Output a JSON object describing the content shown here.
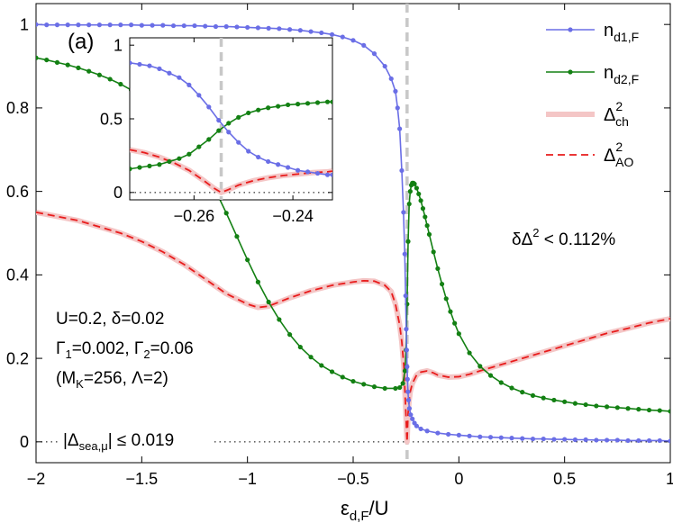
{
  "chart_data": {
    "type": "line",
    "panel_label": "(a)",
    "xlabel_main": "ε",
    "xlabel_sub": "d,F",
    "xlabel_tail": "/U",
    "xlim": [
      -2,
      1
    ],
    "ylim": [
      -0.05,
      1.05
    ],
    "xticks": [
      -2,
      -1.5,
      -1,
      -0.5,
      0,
      0.5,
      1
    ],
    "xtick_labels": [
      "−2",
      "−1.5",
      "−1",
      "−0.5",
      "0",
      "0.5",
      "1"
    ],
    "yticks": [
      0,
      0.2,
      0.4,
      0.6,
      0.8,
      1
    ],
    "ytick_labels": [
      "0",
      "0.2",
      "0.4",
      "0.6",
      "0.8",
      "1"
    ],
    "grid": false,
    "legend_position": "top-right",
    "vline_x": -0.245,
    "colors": {
      "n_d1": "#6a6ee6",
      "n_d2": "#138013",
      "ch": "#f4c6c6",
      "ao": "#e81c1c",
      "vline": "#c8c8c8"
    },
    "legend": [
      {
        "key": "n_d1",
        "main": "n",
        "sub": "d1,F",
        "sup": ""
      },
      {
        "key": "n_d2",
        "main": "n",
        "sub": "d2,F",
        "sup": ""
      },
      {
        "key": "ch",
        "main": "Δ",
        "sub": "ch",
        "sup": "2"
      },
      {
        "key": "ao",
        "main": "Δ",
        "sub": "AO",
        "sup": "2"
      }
    ],
    "series": {
      "n_d1": {
        "x": [
          -2,
          -1.95,
          -1.9,
          -1.85,
          -1.8,
          -1.75,
          -1.7,
          -1.65,
          -1.6,
          -1.55,
          -1.5,
          -1.45,
          -1.4,
          -1.35,
          -1.3,
          -1.25,
          -1.2,
          -1.15,
          -1.1,
          -1.05,
          -1.0,
          -0.95,
          -0.9,
          -0.85,
          -0.8,
          -0.75,
          -0.7,
          -0.65,
          -0.6,
          -0.55,
          -0.5,
          -0.45,
          -0.4,
          -0.35,
          -0.32,
          -0.3,
          -0.29,
          -0.28,
          -0.27,
          -0.262,
          -0.256,
          -0.252,
          -0.249,
          -0.247,
          -0.245,
          -0.243,
          -0.241,
          -0.238,
          -0.234,
          -0.228,
          -0.22,
          -0.21,
          -0.2,
          -0.18,
          -0.15,
          -0.1,
          -0.05,
          0,
          0.05,
          0.1,
          0.15,
          0.2,
          0.25,
          0.3,
          0.35,
          0.4,
          0.45,
          0.5,
          0.55,
          0.6,
          0.65,
          0.7,
          0.75,
          0.8,
          0.85,
          0.9,
          0.95,
          1
        ],
        "y": [
          1.0,
          0.999,
          0.999,
          0.999,
          0.999,
          0.999,
          0.999,
          0.999,
          0.999,
          0.999,
          0.998,
          0.998,
          0.998,
          0.997,
          0.997,
          0.997,
          0.996,
          0.995,
          0.995,
          0.994,
          0.993,
          0.992,
          0.991,
          0.99,
          0.988,
          0.986,
          0.983,
          0.98,
          0.976,
          0.97,
          0.962,
          0.95,
          0.93,
          0.9,
          0.87,
          0.84,
          0.8,
          0.75,
          0.65,
          0.55,
          0.45,
          0.35,
          0.27,
          0.22,
          0.18,
          0.15,
          0.12,
          0.1,
          0.08,
          0.065,
          0.055,
          0.045,
          0.038,
          0.031,
          0.026,
          0.021,
          0.018,
          0.016,
          0.014,
          0.012,
          0.011,
          0.01,
          0.009,
          0.008,
          0.007,
          0.007,
          0.006,
          0.006,
          0.005,
          0.005,
          0.004,
          0.004,
          0.004,
          0.003,
          0.003,
          0.003,
          0.003,
          0.002
        ]
      },
      "n_d2": {
        "x": [
          -2,
          -1.95,
          -1.9,
          -1.85,
          -1.8,
          -1.75,
          -1.7,
          -1.65,
          -1.6,
          -1.55,
          -1.5,
          -1.45,
          -1.4,
          -1.35,
          -1.3,
          -1.25,
          -1.2,
          -1.15,
          -1.1,
          -1.05,
          -1.0,
          -0.95,
          -0.9,
          -0.85,
          -0.8,
          -0.75,
          -0.7,
          -0.65,
          -0.6,
          -0.55,
          -0.5,
          -0.45,
          -0.4,
          -0.35,
          -0.3,
          -0.28,
          -0.265,
          -0.255,
          -0.25,
          -0.245,
          -0.24,
          -0.235,
          -0.23,
          -0.225,
          -0.22,
          -0.215,
          -0.21,
          -0.2,
          -0.19,
          -0.18,
          -0.17,
          -0.16,
          -0.15,
          -0.14,
          -0.12,
          -0.1,
          -0.08,
          -0.06,
          -0.04,
          -0.02,
          0,
          0.05,
          0.1,
          0.15,
          0.2,
          0.25,
          0.3,
          0.35,
          0.4,
          0.45,
          0.5,
          0.55,
          0.6,
          0.65,
          0.7,
          0.75,
          0.8,
          0.85,
          0.9,
          0.95,
          1
        ],
        "y": [
          0.92,
          0.915,
          0.909,
          0.903,
          0.896,
          0.888,
          0.879,
          0.869,
          0.857,
          0.843,
          0.827,
          0.808,
          0.786,
          0.76,
          0.729,
          0.692,
          0.649,
          0.601,
          0.548,
          0.492,
          0.436,
          0.383,
          0.335,
          0.293,
          0.257,
          0.227,
          0.203,
          0.183,
          0.168,
          0.155,
          0.145,
          0.138,
          0.132,
          0.128,
          0.128,
          0.13,
          0.14,
          0.17,
          0.22,
          0.33,
          0.48,
          0.57,
          0.6,
          0.615,
          0.62,
          0.62,
          0.618,
          0.608,
          0.594,
          0.578,
          0.559,
          0.539,
          0.518,
          0.497,
          0.455,
          0.415,
          0.378,
          0.343,
          0.312,
          0.284,
          0.259,
          0.213,
          0.181,
          0.159,
          0.142,
          0.129,
          0.119,
          0.111,
          0.105,
          0.1,
          0.096,
          0.092,
          0.089,
          0.086,
          0.084,
          0.082,
          0.08,
          0.078,
          0.076,
          0.075,
          0.073
        ]
      },
      "ch": {
        "x": [
          -2,
          -1.9,
          -1.8,
          -1.7,
          -1.6,
          -1.5,
          -1.4,
          -1.3,
          -1.2,
          -1.1,
          -1.0,
          -0.95,
          -0.9,
          -0.85,
          -0.8,
          -0.7,
          -0.6,
          -0.5,
          -0.45,
          -0.4,
          -0.35,
          -0.32,
          -0.3,
          -0.28,
          -0.27,
          -0.26,
          -0.255,
          -0.25,
          -0.247,
          -0.245,
          -0.243,
          -0.24,
          -0.235,
          -0.23,
          -0.22,
          -0.2,
          -0.18,
          -0.15,
          -0.12,
          -0.1,
          -0.05,
          0,
          0.05,
          0.1,
          0.2,
          0.3,
          0.4,
          0.5,
          0.6,
          0.7,
          0.8,
          0.9,
          1
        ],
        "y": [
          0.55,
          0.54,
          0.53,
          0.515,
          0.5,
          0.48,
          0.455,
          0.425,
          0.39,
          0.355,
          0.33,
          0.322,
          0.325,
          0.335,
          0.345,
          0.362,
          0.375,
          0.383,
          0.386,
          0.385,
          0.375,
          0.36,
          0.33,
          0.28,
          0.24,
          0.18,
          0.12,
          0.06,
          0.02,
          0.0,
          0.03,
          0.07,
          0.1,
          0.12,
          0.14,
          0.16,
          0.167,
          0.17,
          0.165,
          0.16,
          0.155,
          0.156,
          0.162,
          0.17,
          0.185,
          0.2,
          0.215,
          0.23,
          0.245,
          0.26,
          0.272,
          0.285,
          0.295
        ]
      }
    },
    "horizontal_zero_line": true,
    "annotations": [
      {
        "id": "params1",
        "text": "U=0.2, δ=0.02"
      },
      {
        "id": "params2_a",
        "text": "Γ"
      },
      {
        "id": "params2_a_sub",
        "text": "1"
      },
      {
        "id": "params2_b",
        "text": "=0.002, Γ"
      },
      {
        "id": "params2_b_sub",
        "text": "2"
      },
      {
        "id": "params2_c",
        "text": "=0.06"
      },
      {
        "id": "params3_a",
        "text": "(M"
      },
      {
        "id": "params3_a_sub",
        "text": "K"
      },
      {
        "id": "params3_b",
        "text": "=256, Λ=2)"
      },
      {
        "id": "sea_a",
        "text": "|Δ"
      },
      {
        "id": "sea_a_sub",
        "text": "sea,μ"
      },
      {
        "id": "sea_b",
        "text": "| ≤ 0.019"
      },
      {
        "id": "delta_a",
        "text": "δΔ"
      },
      {
        "id": "delta_a_sup",
        "text": "2"
      },
      {
        "id": "delta_b",
        "text": " < 0.112%"
      }
    ],
    "inset": {
      "xlim": [
        -0.273,
        -0.232
      ],
      "ylim": [
        -0.05,
        1.05
      ],
      "xticks": [
        -0.26,
        -0.24
      ],
      "xtick_labels": [
        "−0.26",
        "−0.24"
      ],
      "yticks": [
        0,
        0.5,
        1
      ],
      "ytick_labels": [
        "0",
        "0.5",
        "1"
      ],
      "vline_x": -0.2545,
      "series": {
        "n_d1": {
          "x": [
            -0.273,
            -0.271,
            -0.269,
            -0.267,
            -0.265,
            -0.263,
            -0.261,
            -0.259,
            -0.257,
            -0.255,
            -0.253,
            -0.251,
            -0.249,
            -0.247,
            -0.245,
            -0.243,
            -0.241,
            -0.239,
            -0.237,
            -0.235,
            -0.233,
            -0.232
          ],
          "y": [
            0.88,
            0.87,
            0.86,
            0.84,
            0.81,
            0.78,
            0.73,
            0.66,
            0.58,
            0.49,
            0.41,
            0.34,
            0.28,
            0.24,
            0.21,
            0.19,
            0.17,
            0.15,
            0.14,
            0.13,
            0.12,
            0.12
          ]
        },
        "n_d2": {
          "x": [
            -0.273,
            -0.271,
            -0.269,
            -0.267,
            -0.265,
            -0.263,
            -0.261,
            -0.259,
            -0.257,
            -0.255,
            -0.253,
            -0.251,
            -0.249,
            -0.247,
            -0.245,
            -0.243,
            -0.241,
            -0.239,
            -0.237,
            -0.235,
            -0.233,
            -0.232
          ],
          "y": [
            0.16,
            0.17,
            0.18,
            0.19,
            0.21,
            0.23,
            0.26,
            0.31,
            0.36,
            0.42,
            0.47,
            0.51,
            0.54,
            0.56,
            0.575,
            0.585,
            0.595,
            0.6,
            0.605,
            0.61,
            0.615,
            0.615
          ]
        },
        "ch": {
          "x": [
            -0.273,
            -0.27,
            -0.267,
            -0.264,
            -0.261,
            -0.258,
            -0.256,
            -0.2545,
            -0.253,
            -0.251,
            -0.248,
            -0.245,
            -0.242,
            -0.239,
            -0.236,
            -0.233,
            -0.232
          ],
          "y": [
            0.29,
            0.27,
            0.24,
            0.2,
            0.15,
            0.08,
            0.03,
            0.0,
            0.02,
            0.05,
            0.08,
            0.1,
            0.115,
            0.125,
            0.135,
            0.14,
            0.145
          ]
        }
      }
    }
  }
}
